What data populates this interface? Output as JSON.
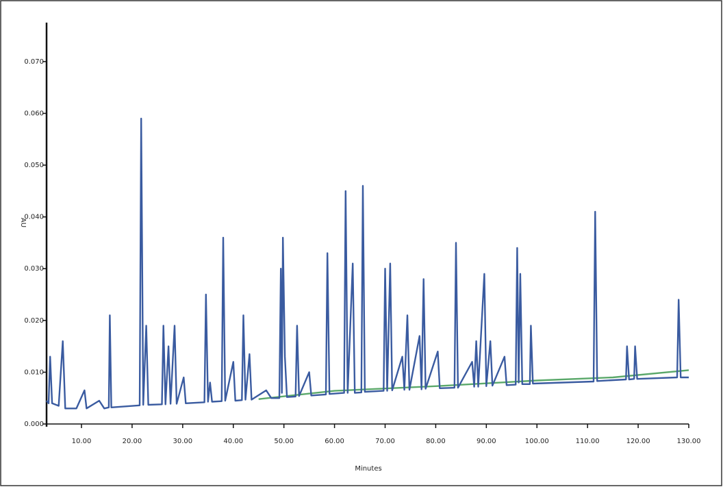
{
  "chart_data": {
    "type": "line",
    "xlabel": "Minutes",
    "ylabel": "AU",
    "xlim": [
      3.1,
      130
    ],
    "ylim": [
      0,
      0.077
    ],
    "xticks": [
      {
        "value": 10,
        "label": "10.00"
      },
      {
        "value": 20,
        "label": "20.00"
      },
      {
        "value": 30,
        "label": "30.00"
      },
      {
        "value": 40,
        "label": "40.00"
      },
      {
        "value": 50,
        "label": "50.00"
      },
      {
        "value": 60,
        "label": "60.00"
      },
      {
        "value": 70,
        "label": "70.00"
      },
      {
        "value": 80,
        "label": "80.00"
      },
      {
        "value": 90,
        "label": "90.00"
      },
      {
        "value": 100,
        "label": "100.00"
      },
      {
        "value": 110,
        "label": "110.00"
      },
      {
        "value": 120,
        "label": "120.00"
      },
      {
        "value": 130,
        "label": "130.00"
      }
    ],
    "yticks": [
      {
        "value": 0,
        "label": "0.000"
      },
      {
        "value": 0.01,
        "label": "0.010"
      },
      {
        "value": 0.02,
        "label": "0.020"
      },
      {
        "value": 0.03,
        "label": "0.030"
      },
      {
        "value": 0.04,
        "label": "0.040"
      },
      {
        "value": 0.05,
        "label": "0.050"
      },
      {
        "value": 0.06,
        "label": "0.060"
      },
      {
        "value": 0.07,
        "label": "0.070"
      }
    ],
    "x": [
      3.1,
      3.5,
      3.8,
      4.2,
      5.5,
      6.3,
      6.8,
      9.0,
      10.6,
      11.0,
      13.5,
      14.5,
      15.4,
      15.6,
      15.9,
      21.5,
      21.8,
      22.2,
      22.8,
      23.2,
      25.9,
      26.2,
      26.6,
      27.2,
      27.6,
      28.4,
      28.8,
      30.2,
      30.6,
      34.3,
      34.6,
      35.0,
      35.4,
      35.8,
      37.7,
      38.0,
      38.4,
      40.0,
      40.4,
      41.7,
      42.0,
      42.4,
      43.2,
      43.6,
      46.5,
      47.5,
      49.1,
      49.4,
      49.6,
      49.8,
      50.2,
      50.6,
      52.3,
      52.6,
      53.0,
      55.0,
      55.4,
      58.3,
      58.6,
      59.0,
      61.9,
      62.2,
      62.6,
      63.6,
      64.0,
      65.3,
      65.6,
      66.0,
      69.7,
      70.0,
      70.4,
      71.0,
      71.4,
      73.4,
      73.8,
      74.4,
      74.8,
      76.8,
      77.2,
      77.6,
      78.0,
      80.4,
      80.8,
      83.7,
      84.0,
      84.4,
      87.2,
      87.6,
      88.0,
      88.4,
      89.6,
      90.0,
      90.8,
      91.2,
      93.6,
      94.0,
      95.8,
      96.1,
      96.4,
      96.7,
      97.1,
      98.6,
      98.8,
      99.2,
      111.2,
      111.5,
      111.9,
      117.6,
      117.8,
      118.2,
      119.2,
      119.4,
      119.8,
      127.7,
      128.0,
      128.4,
      130
    ],
    "series": [
      {
        "color": "#5aa86a",
        "x": [
          45,
          60,
          80,
          100,
          115,
          130
        ],
        "values": [
          0.0048,
          0.0064,
          0.0073,
          0.0084,
          0.009,
          0.0104
        ]
      },
      {
        "color": "#3a5ba0",
        "values": [
          0.0045,
          0.004,
          0.013,
          0.004,
          0.0035,
          0.016,
          0.003,
          0.003,
          0.0065,
          0.003,
          0.0045,
          0.003,
          0.0032,
          0.021,
          0.0032,
          0.0036,
          0.059,
          0.0037,
          0.019,
          0.0037,
          0.0038,
          0.019,
          0.0038,
          0.015,
          0.0039,
          0.019,
          0.0039,
          0.009,
          0.004,
          0.0042,
          0.025,
          0.0043,
          0.008,
          0.0043,
          0.0044,
          0.036,
          0.0045,
          0.012,
          0.0045,
          0.0046,
          0.021,
          0.0047,
          0.0135,
          0.0047,
          0.0065,
          0.005,
          0.005,
          0.03,
          0.006,
          0.036,
          0.013,
          0.0052,
          0.0053,
          0.019,
          0.0054,
          0.01,
          0.0055,
          0.0057,
          0.033,
          0.0058,
          0.006,
          0.045,
          0.006,
          0.031,
          0.006,
          0.0061,
          0.046,
          0.0062,
          0.0064,
          0.03,
          0.0064,
          0.031,
          0.0065,
          0.013,
          0.0066,
          0.021,
          0.0066,
          0.017,
          0.0067,
          0.028,
          0.0068,
          0.014,
          0.0069,
          0.007,
          0.035,
          0.007,
          0.012,
          0.0072,
          0.016,
          0.0072,
          0.029,
          0.0073,
          0.016,
          0.0074,
          0.013,
          0.0075,
          0.0076,
          0.034,
          0.008,
          0.029,
          0.0077,
          0.0077,
          0.019,
          0.0078,
          0.0082,
          0.041,
          0.0083,
          0.0086,
          0.015,
          0.0086,
          0.0087,
          0.015,
          0.0087,
          0.009,
          0.024,
          0.009,
          0.009
        ]
      }
    ]
  }
}
